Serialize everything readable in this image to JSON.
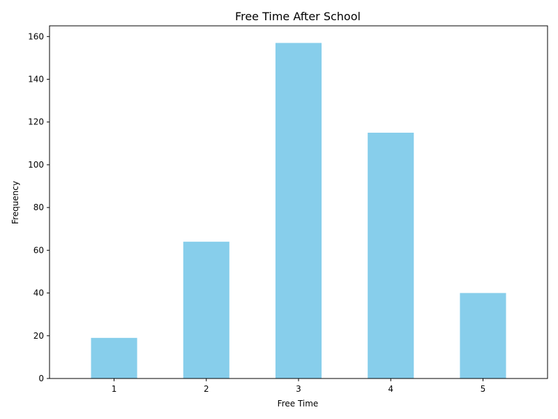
{
  "chart_data": {
    "type": "bar",
    "title": "Free Time After School",
    "xlabel": "Free Time",
    "ylabel": "Frequency",
    "categories": [
      "1",
      "2",
      "3",
      "4",
      "5"
    ],
    "values": [
      19,
      64,
      157,
      115,
      40
    ],
    "ylim": [
      0,
      165
    ],
    "yticks": [
      0,
      20,
      40,
      60,
      80,
      100,
      120,
      140,
      160
    ],
    "grid": false,
    "legend": "none",
    "bar_color": "#87CEEB"
  }
}
